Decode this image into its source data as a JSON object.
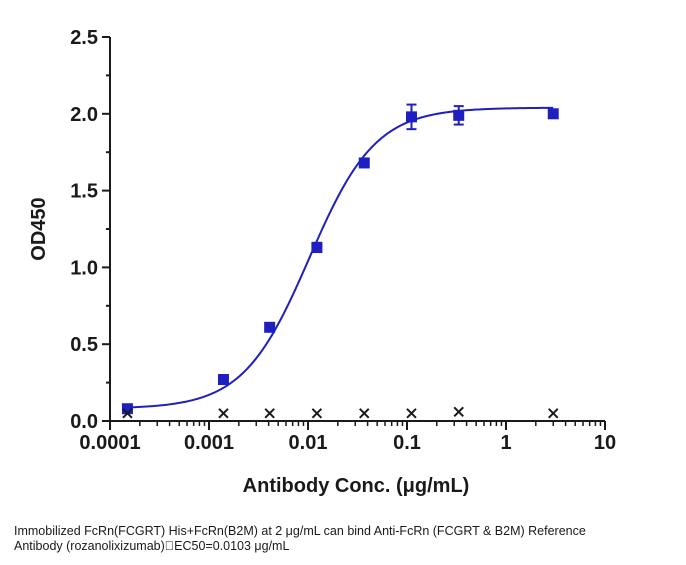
{
  "chart_data": {
    "type": "scatter",
    "xlabel": "Antibody Conc. (μg/mL)",
    "ylabel": "OD450",
    "x_scale": "log",
    "xlim": [
      0.0001,
      10
    ],
    "ylim": [
      0,
      2.5
    ],
    "x_tick_labels": [
      "0.0001",
      "0.001",
      "0.01",
      "0.1",
      "1",
      "10"
    ],
    "y_tick_labels": [
      "0.0",
      "0.5",
      "1.0",
      "1.5",
      "2.0",
      "2.5"
    ],
    "grid": false,
    "legend": "none",
    "series": [
      {
        "marker": "square",
        "color": "#1f1fbf",
        "x": [
          0.00015,
          0.0014,
          0.0041,
          0.0123,
          0.037,
          0.111,
          0.333,
          3
        ],
        "y": [
          0.08,
          0.27,
          0.61,
          1.13,
          1.68,
          1.98,
          1.99,
          2.0
        ],
        "error": [
          0.0,
          0.01,
          0.01,
          0.03,
          0.01,
          0.08,
          0.06,
          0.0
        ],
        "fit": {
          "model": "4PL",
          "bottom": 0.08,
          "top": 2.04,
          "ec50": 0.0103,
          "hill": 1.3
        }
      },
      {
        "marker": "x",
        "color": "#1a1a1a",
        "x": [
          0.00015,
          0.0014,
          0.0041,
          0.0123,
          0.037,
          0.111,
          0.333,
          3
        ],
        "y": [
          0.05,
          0.05,
          0.05,
          0.05,
          0.05,
          0.05,
          0.06,
          0.05
        ]
      }
    ]
  },
  "caption": {
    "line1": "Immobilized FcRn(FCGRT) His+FcRn(B2M)  at 2  μg/mL can bind  Anti-FcRn (FCGRT & B2M) Reference",
    "line2": "Antibody (rozanolixizumab)\u0000EC50=0.0103 μg/mL"
  }
}
